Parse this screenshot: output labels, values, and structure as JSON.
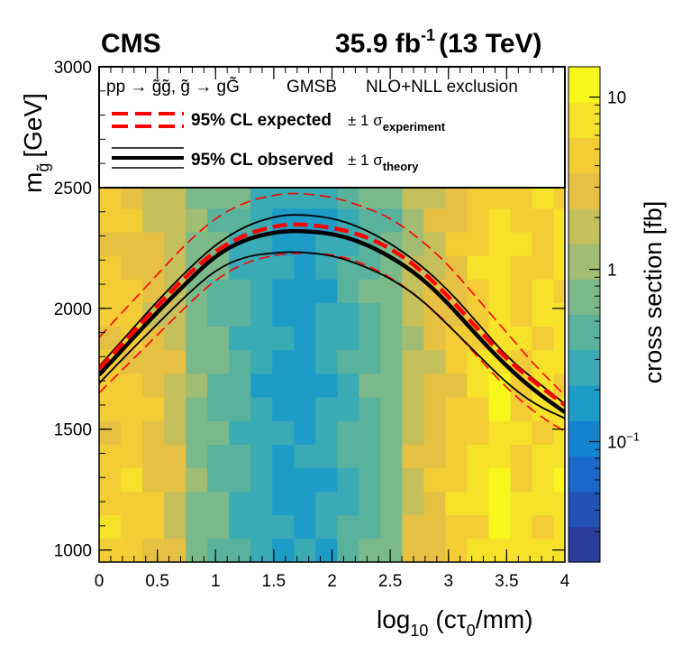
{
  "chart_data": {
    "type": "heatmap",
    "experiment": "CMS",
    "lumi_label": "35.9 fb",
    "lumi_exp": "-1",
    "energy_label": "(13 TeV)",
    "x": {
      "label_main": "log",
      "label_sub": "10",
      "label_rest": "(cτ",
      "label_sub2": "0",
      "label_end": "/mm)",
      "range": [
        0,
        4
      ],
      "ticks": [
        "0",
        "0.5",
        "1",
        "1.5",
        "2",
        "2.5",
        "3",
        "3.5",
        "4"
      ]
    },
    "y": {
      "label_m": "m",
      "label_sub": "g̃",
      "label_unit": "[GeV]",
      "range": [
        950,
        3000
      ],
      "ticks": [
        "1000",
        "1500",
        "2000",
        "2500",
        "3000"
      ]
    },
    "z": {
      "label": "cross section [fb]",
      "log_range": [
        0.02,
        15
      ],
      "ticks": [
        {
          "v": 10,
          "mant": "10",
          "exp": ""
        },
        {
          "v": 1,
          "mant": "1",
          "exp": ""
        },
        {
          "v": 0.1,
          "mant": "10",
          "exp": "−1"
        }
      ]
    },
    "legend": {
      "process": "pp → g̃g̃, g̃ → gG̃",
      "model": "GMSB",
      "calc": "NLO+NLL exclusion",
      "expected_label": "95% CL expected",
      "expected_unc": "± 1 σ",
      "expected_sub": "experiment",
      "observed_label": "95% CL observed",
      "observed_unc": "± 1 σ",
      "observed_sub": "theory"
    },
    "curves": {
      "x": [
        0.0,
        0.25,
        0.5,
        0.75,
        1.0,
        1.25,
        1.5,
        1.7,
        2.0,
        2.25,
        2.5,
        2.75,
        3.0,
        3.25,
        3.5,
        3.75,
        4.0
      ],
      "expected": [
        1750,
        1880,
        2010,
        2135,
        2240,
        2305,
        2340,
        2350,
        2335,
        2305,
        2250,
        2165,
        2050,
        1915,
        1790,
        1690,
        1600
      ],
      "expected_up": [
        1880,
        2010,
        2140,
        2270,
        2375,
        2440,
        2470,
        2478,
        2462,
        2425,
        2375,
        2290,
        2180,
        2040,
        1900,
        1760,
        1640
      ],
      "expected_down": [
        1650,
        1770,
        1890,
        2010,
        2120,
        2190,
        2220,
        2230,
        2225,
        2190,
        2130,
        2045,
        1935,
        1800,
        1670,
        1565,
        1490
      ],
      "observed": [
        1725,
        1855,
        1985,
        2105,
        2220,
        2285,
        2315,
        2322,
        2310,
        2275,
        2215,
        2135,
        2020,
        1885,
        1760,
        1655,
        1570
      ],
      "observed_up": [
        1760,
        1895,
        2030,
        2155,
        2265,
        2340,
        2380,
        2390,
        2375,
        2335,
        2270,
        2185,
        2075,
        1940,
        1800,
        1700,
        1605
      ],
      "observed_down": [
        1690,
        1815,
        1935,
        2055,
        2160,
        2215,
        2230,
        2235,
        2220,
        2180,
        2125,
        2045,
        1930,
        1810,
        1690,
        1600,
        1545
      ]
    },
    "grid": {
      "nx": 22,
      "ny": 21,
      "x_min": 0,
      "x_max": 4.09,
      "y_min": 950,
      "y_max": 3000
    },
    "colors": {
      "expected": "#ff0000",
      "observed": "#000000",
      "palette": [
        "#2a3d9b",
        "#2352b6",
        "#1a68c8",
        "#1483cf",
        "#1e9cc8",
        "#3aaab4",
        "#58b29c",
        "#7cb98a",
        "#a0bd73",
        "#c5bf5c",
        "#e6c043",
        "#f4cc36",
        "#f7e22a",
        "#f8f61a"
      ]
    }
  }
}
